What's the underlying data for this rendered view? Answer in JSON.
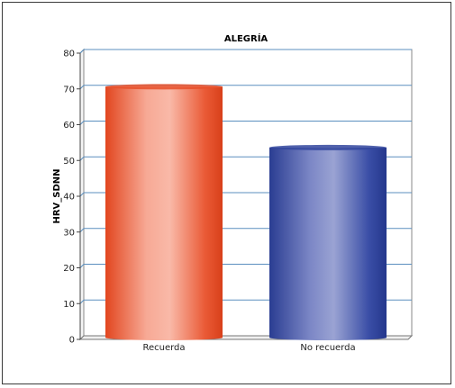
{
  "chart_data": {
    "type": "bar",
    "title": "ALEGRÍA",
    "xlabel": "",
    "ylabel": "HRV_SDNN",
    "categories": [
      "Recuerda",
      "No recuerda"
    ],
    "values": [
      69.6,
      52.6
    ],
    "ylim": [
      0,
      80
    ],
    "yticks": [
      0,
      10,
      20,
      30,
      40,
      50,
      60,
      70,
      80
    ],
    "grid": true,
    "bar_colors": [
      "#e8502a",
      "#33479e"
    ]
  }
}
